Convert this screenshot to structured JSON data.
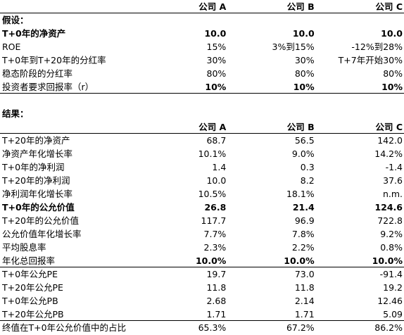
{
  "assumptions": {
    "header": [
      "公司 A",
      "公司 B",
      "公司 C"
    ],
    "title": "假设：",
    "rows": [
      [
        "T+0年的净资产",
        "10.0",
        "10.0",
        "10.0"
      ],
      [
        "ROE",
        "15%",
        "3%到15%",
        "-12%到28%"
      ],
      [
        "T+0年到T+20年的分红率",
        "30%",
        "30%",
        "T+7年开始30%"
      ],
      [
        "稳态阶段的分红率",
        "80%",
        "80%",
        "80%"
      ],
      [
        "投资者要求回报率（r）",
        "10%",
        "10%",
        "10%"
      ]
    ]
  },
  "results": {
    "title": "结果：",
    "header": [
      "公司 A",
      "公司 B",
      "公司 C"
    ],
    "rows": [
      [
        "T+20年的净资产",
        "68.7",
        "56.5",
        "142.0"
      ],
      [
        "净资产年化增长率",
        "10.1%",
        "9.0%",
        "14.2%"
      ],
      [
        "T+0年的净利润",
        "1.4",
        "0.3",
        "-1.4"
      ],
      [
        "T+20年的净利润",
        "10.0",
        "8.2",
        "37.6"
      ],
      [
        "净利润年化增长率",
        "10.5%",
        "18.1%",
        "n.m."
      ],
      [
        "T+0年的公允价值",
        "26.8",
        "21.4",
        "124.6"
      ],
      [
        "T+20年的公允价值",
        "117.7",
        "96.9",
        "722.8"
      ],
      [
        "公允价值年化增长率",
        "7.7%",
        "7.8%",
        "9.2%"
      ],
      [
        "平均股息率",
        "2.3%",
        "2.2%",
        "0.8%"
      ],
      [
        "年化总回报率",
        "10.0%",
        "10.0%",
        "10.0%"
      ],
      [
        "T+0年公允PE",
        "19.7",
        "73.0",
        "-91.4"
      ],
      [
        "T+20年公允PE",
        "11.8",
        "11.8",
        "19.2"
      ],
      [
        "T+0年公允PB",
        "2.68",
        "2.14",
        "12.46"
      ],
      [
        "T+20年公允PB",
        "1.71",
        "1.71",
        "5.09"
      ],
      [
        "终值在T+0年公允价值中的占比",
        "65.3%",
        "67.2%",
        "86.2%"
      ]
    ]
  }
}
